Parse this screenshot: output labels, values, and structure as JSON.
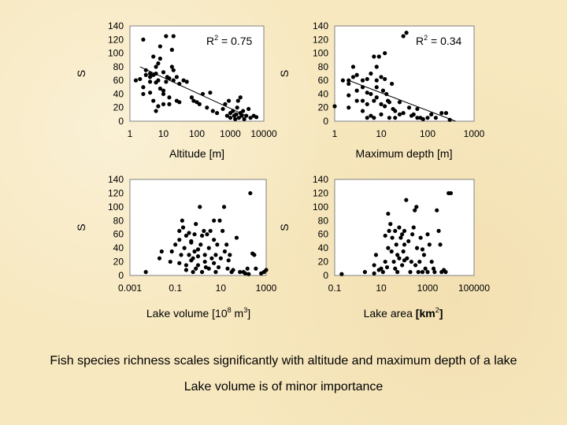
{
  "chart_data": [
    {
      "type": "scatter",
      "xlabel": "Altitude [m]",
      "ylabel": "S",
      "xscale": "log",
      "xlim": [
        1,
        10000
      ],
      "ylim": [
        0,
        140
      ],
      "xticks": [
        "1",
        "10",
        "100",
        "1000",
        "10000"
      ],
      "yticks": [
        "0",
        "20",
        "40",
        "60",
        "80",
        "100",
        "120",
        "140"
      ],
      "annotation": {
        "base": "R",
        "sup": "2",
        "rest": " = 0.75"
      },
      "trend": {
        "kind": "log-linear",
        "x": [
          2,
          3000
        ],
        "y": [
          80,
          8
        ]
      },
      "points": [
        [
          1.5,
          60
        ],
        [
          2,
          62
        ],
        [
          2.5,
          50
        ],
        [
          2.5,
          40
        ],
        [
          2.5,
          120
        ],
        [
          3,
          68
        ],
        [
          3,
          75
        ],
        [
          4,
          70
        ],
        [
          4,
          65
        ],
        [
          4,
          58
        ],
        [
          4,
          42
        ],
        [
          5,
          30
        ],
        [
          5,
          68
        ],
        [
          5,
          95
        ],
        [
          6,
          80
        ],
        [
          6,
          70
        ],
        [
          6,
          57
        ],
        [
          6,
          15
        ],
        [
          7,
          22
        ],
        [
          7,
          60
        ],
        [
          7,
          85
        ],
        [
          8,
          110
        ],
        [
          8,
          92
        ],
        [
          8,
          48
        ],
        [
          10,
          72
        ],
        [
          10,
          45
        ],
        [
          10,
          40
        ],
        [
          10,
          25
        ],
        [
          12,
          58
        ],
        [
          12,
          125
        ],
        [
          13,
          65
        ],
        [
          15,
          63
        ],
        [
          15,
          35
        ],
        [
          15,
          25
        ],
        [
          18,
          105
        ],
        [
          18,
          80
        ],
        [
          20,
          60
        ],
        [
          20,
          75
        ],
        [
          20,
          125
        ],
        [
          25,
          65
        ],
        [
          25,
          30
        ],
        [
          30,
          55
        ],
        [
          30,
          28
        ],
        [
          40,
          60
        ],
        [
          50,
          58
        ],
        [
          70,
          35
        ],
        [
          80,
          30
        ],
        [
          100,
          28
        ],
        [
          120,
          25
        ],
        [
          150,
          40
        ],
        [
          200,
          20
        ],
        [
          250,
          42
        ],
        [
          300,
          15
        ],
        [
          400,
          12
        ],
        [
          600,
          18
        ],
        [
          700,
          25
        ],
        [
          800,
          8
        ],
        [
          900,
          30
        ],
        [
          1000,
          12
        ],
        [
          1000,
          5
        ],
        [
          1200,
          15
        ],
        [
          1300,
          8
        ],
        [
          1400,
          3
        ],
        [
          1500,
          10
        ],
        [
          1600,
          20
        ],
        [
          1700,
          30
        ],
        [
          1800,
          5
        ],
        [
          2000,
          35
        ],
        [
          2000,
          12
        ],
        [
          2200,
          8
        ],
        [
          2400,
          15
        ],
        [
          2600,
          3
        ],
        [
          3000,
          8
        ],
        [
          3500,
          18
        ],
        [
          4000,
          5
        ],
        [
          5000,
          8
        ],
        [
          6000,
          6
        ]
      ]
    },
    {
      "type": "scatter",
      "xlabel": "Maximum depth [m]",
      "ylabel": "S",
      "xscale": "log",
      "xlim": [
        1,
        1000
      ],
      "ylim": [
        0,
        140
      ],
      "xticks": [
        "1",
        "10",
        "100",
        "1000"
      ],
      "yticks": [
        "0",
        "20",
        "40",
        "60",
        "80",
        "100",
        "120",
        "140"
      ],
      "annotation": {
        "base": "R",
        "sup": "2",
        "rest": " = 0.34"
      },
      "trend": {
        "kind": "log-linear",
        "x": [
          2,
          400
        ],
        "y": [
          60,
          0
        ]
      },
      "points": [
        [
          1,
          22
        ],
        [
          1.5,
          60
        ],
        [
          2,
          60
        ],
        [
          2,
          55
        ],
        [
          2,
          38
        ],
        [
          2,
          20
        ],
        [
          2.5,
          65
        ],
        [
          2.5,
          80
        ],
        [
          3,
          30
        ],
        [
          3,
          45
        ],
        [
          3,
          68
        ],
        [
          4,
          50
        ],
        [
          4,
          60
        ],
        [
          4,
          30
        ],
        [
          4,
          15
        ],
        [
          5,
          62
        ],
        [
          5,
          42
        ],
        [
          5,
          5
        ],
        [
          5,
          25
        ],
        [
          6,
          70
        ],
        [
          6,
          8
        ],
        [
          6,
          40
        ],
        [
          7,
          95
        ],
        [
          7,
          30
        ],
        [
          7,
          5
        ],
        [
          8,
          80
        ],
        [
          8,
          60
        ],
        [
          8,
          35
        ],
        [
          8,
          50
        ],
        [
          9,
          95
        ],
        [
          10,
          65
        ],
        [
          10,
          25
        ],
        [
          10,
          10
        ],
        [
          11,
          45
        ],
        [
          12,
          22
        ],
        [
          12,
          100
        ],
        [
          12,
          62
        ],
        [
          13,
          40
        ],
        [
          14,
          30
        ],
        [
          15,
          28
        ],
        [
          15,
          5
        ],
        [
          17,
          55
        ],
        [
          18,
          18
        ],
        [
          20,
          15
        ],
        [
          20,
          5
        ],
        [
          25,
          10
        ],
        [
          25,
          28
        ],
        [
          30,
          12
        ],
        [
          30,
          125
        ],
        [
          35,
          130
        ],
        [
          40,
          20
        ],
        [
          45,
          8
        ],
        [
          50,
          10
        ],
        [
          60,
          5
        ],
        [
          60,
          18
        ],
        [
          70,
          5
        ],
        [
          80,
          3
        ],
        [
          100,
          5
        ],
        [
          120,
          10
        ],
        [
          150,
          5
        ],
        [
          200,
          12
        ],
        [
          250,
          12
        ],
        [
          300,
          2
        ]
      ]
    },
    {
      "type": "scatter",
      "xlabel": {
        "base": "Lake volume [10",
        "sup": "8",
        "mid": " m",
        "sup2": "3",
        "end": "]"
      },
      "ylabel": "S",
      "xscale": "log",
      "xlim": [
        0.001,
        1000
      ],
      "ylim": [
        0,
        140
      ],
      "xticks": [
        "0.001",
        "0.1",
        "10",
        "1000"
      ],
      "yticks": [
        "0",
        "20",
        "40",
        "60",
        "80",
        "100",
        "120",
        "140"
      ],
      "points": [
        [
          0.005,
          5
        ],
        [
          0.02,
          25
        ],
        [
          0.025,
          35
        ],
        [
          0.06,
          20
        ],
        [
          0.07,
          35
        ],
        [
          0.1,
          45
        ],
        [
          0.15,
          65
        ],
        [
          0.15,
          52
        ],
        [
          0.15,
          18
        ],
        [
          0.18,
          30
        ],
        [
          0.2,
          80
        ],
        [
          0.22,
          70
        ],
        [
          0.25,
          40
        ],
        [
          0.3,
          58
        ],
        [
          0.3,
          15
        ],
        [
          0.3,
          8
        ],
        [
          0.4,
          62
        ],
        [
          0.4,
          30
        ],
        [
          0.5,
          50
        ],
        [
          0.5,
          48
        ],
        [
          0.5,
          22
        ],
        [
          0.6,
          25
        ],
        [
          0.6,
          5
        ],
        [
          0.7,
          60
        ],
        [
          0.7,
          35
        ],
        [
          0.8,
          75
        ],
        [
          0.8,
          10
        ],
        [
          1,
          38
        ],
        [
          1,
          28
        ],
        [
          1,
          15
        ],
        [
          1.2,
          100
        ],
        [
          1.3,
          45
        ],
        [
          1.5,
          58
        ],
        [
          1.5,
          5
        ],
        [
          1.8,
          65
        ],
        [
          2,
          30
        ],
        [
          2,
          20
        ],
        [
          2.2,
          12
        ],
        [
          2.5,
          60
        ],
        [
          3,
          40
        ],
        [
          3,
          10
        ],
        [
          3.5,
          65
        ],
        [
          4,
          25
        ],
        [
          5,
          80
        ],
        [
          5,
          52
        ],
        [
          5,
          18
        ],
        [
          6,
          30
        ],
        [
          6,
          5
        ],
        [
          7,
          45
        ],
        [
          8,
          12
        ],
        [
          9,
          80
        ],
        [
          10,
          25
        ],
        [
          12,
          65
        ],
        [
          14,
          100
        ],
        [
          15,
          35
        ],
        [
          18,
          45
        ],
        [
          20,
          10
        ],
        [
          22,
          22
        ],
        [
          25,
          30
        ],
        [
          30,
          5
        ],
        [
          35,
          8
        ],
        [
          50,
          55
        ],
        [
          70,
          5
        ],
        [
          100,
          5
        ],
        [
          120,
          3
        ],
        [
          150,
          10
        ],
        [
          170,
          2
        ],
        [
          200,
          120
        ],
        [
          250,
          32
        ],
        [
          300,
          30
        ],
        [
          350,
          10
        ],
        [
          600,
          3
        ],
        [
          800,
          5
        ],
        [
          1000,
          8
        ]
      ]
    },
    {
      "type": "scatter",
      "xlabel": {
        "base": "Lake area ",
        "bold": "[km",
        "sup": "2",
        "end": "]"
      },
      "ylabel": "S",
      "xscale": "log",
      "xlim": [
        0.1,
        100000
      ],
      "ylim": [
        0,
        140
      ],
      "xticks": [
        "0.1",
        "10",
        "1000",
        "100000"
      ],
      "yticks": [
        "0",
        "20",
        "40",
        "60",
        "80",
        "100",
        "120",
        "140"
      ],
      "points": [
        [
          0.2,
          2
        ],
        [
          2,
          5
        ],
        [
          5,
          3
        ],
        [
          5,
          15
        ],
        [
          6,
          30
        ],
        [
          8,
          8
        ],
        [
          10,
          10
        ],
        [
          12,
          5
        ],
        [
          15,
          20
        ],
        [
          15,
          58
        ],
        [
          18,
          12
        ],
        [
          20,
          40
        ],
        [
          20,
          90
        ],
        [
          22,
          65
        ],
        [
          25,
          75
        ],
        [
          28,
          35
        ],
        [
          30,
          55
        ],
        [
          35,
          20
        ],
        [
          40,
          65
        ],
        [
          40,
          10
        ],
        [
          45,
          45
        ],
        [
          50,
          30
        ],
        [
          50,
          5
        ],
        [
          60,
          25
        ],
        [
          60,
          70
        ],
        [
          70,
          55
        ],
        [
          80,
          15
        ],
        [
          80,
          60
        ],
        [
          90,
          35
        ],
        [
          100,
          65
        ],
        [
          100,
          22
        ],
        [
          100,
          45
        ],
        [
          120,
          110
        ],
        [
          130,
          25
        ],
        [
          150,
          50
        ],
        [
          180,
          5
        ],
        [
          200,
          20
        ],
        [
          220,
          60
        ],
        [
          250,
          70
        ],
        [
          280,
          95
        ],
        [
          300,
          15
        ],
        [
          330,
          100
        ],
        [
          350,
          40
        ],
        [
          400,
          5
        ],
        [
          450,
          20
        ],
        [
          500,
          55
        ],
        [
          600,
          5
        ],
        [
          600,
          38
        ],
        [
          700,
          30
        ],
        [
          800,
          10
        ],
        [
          1000,
          5
        ],
        [
          1000,
          60
        ],
        [
          1200,
          45
        ],
        [
          1500,
          20
        ],
        [
          1800,
          10
        ],
        [
          2000,
          5
        ],
        [
          2500,
          95
        ],
        [
          3000,
          65
        ],
        [
          3500,
          45
        ],
        [
          4000,
          5
        ],
        [
          5000,
          8
        ],
        [
          6000,
          5
        ],
        [
          8000,
          120
        ],
        [
          10000,
          120
        ]
      ]
    }
  ],
  "caption": {
    "line1": "Fish species richness scales significantly with altitude and maximum depth of a lake",
    "line2": "Lake volume is of minor importance"
  }
}
